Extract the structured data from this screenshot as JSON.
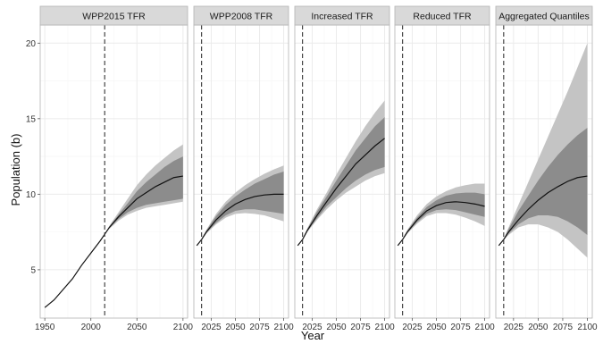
{
  "chart_data": {
    "type": "area",
    "xlabel": "Year",
    "ylabel": "Population (b)",
    "ylim": [
      1.8,
      21.2
    ],
    "y_ticks": [
      5,
      10,
      15,
      20
    ],
    "grid": "on",
    "vline_year": 2015,
    "colors": {
      "panel_bg": "#ffffff",
      "strip_bg": "#d9d9d9",
      "panel_border": "#b3b3b3",
      "grid_major": "#ebebeb",
      "grid_minor": "#f5f5f5",
      "outer_band": "#c4c4c4",
      "inner_band": "#8c8c8c",
      "median_line": "#111111",
      "vline": "#333333"
    },
    "panels": [
      {
        "label": "WPP2015 TFR",
        "xlim": [
          1945,
          2105
        ],
        "x_ticks": [
          1950,
          2000,
          2050,
          2100
        ],
        "x_tick_labels": [
          "1950",
          "2000",
          "2050",
          "2100"
        ],
        "median": [
          [
            1950,
            2.5
          ],
          [
            1960,
            3.0
          ],
          [
            1970,
            3.7
          ],
          [
            1980,
            4.4
          ],
          [
            1990,
            5.3
          ],
          [
            2000,
            6.1
          ],
          [
            2010,
            6.9
          ],
          [
            2015,
            7.35
          ],
          [
            2020,
            7.8
          ],
          [
            2030,
            8.5
          ],
          [
            2040,
            9.1
          ],
          [
            2050,
            9.7
          ],
          [
            2060,
            10.1
          ],
          [
            2070,
            10.5
          ],
          [
            2080,
            10.8
          ],
          [
            2090,
            11.1
          ],
          [
            2100,
            11.2
          ]
        ],
        "band_80": [
          [
            2015,
            7.35,
            7.35
          ],
          [
            2020,
            7.75,
            7.85
          ],
          [
            2030,
            8.35,
            8.65
          ],
          [
            2040,
            8.8,
            9.4
          ],
          [
            2050,
            9.1,
            10.2
          ],
          [
            2060,
            9.3,
            10.8
          ],
          [
            2070,
            9.4,
            11.3
          ],
          [
            2080,
            9.5,
            11.8
          ],
          [
            2090,
            9.6,
            12.2
          ],
          [
            2100,
            9.7,
            12.5
          ]
        ],
        "band_95": [
          [
            2015,
            7.35,
            7.35
          ],
          [
            2020,
            7.7,
            7.9
          ],
          [
            2030,
            8.25,
            8.8
          ],
          [
            2040,
            8.65,
            9.7
          ],
          [
            2050,
            8.9,
            10.6
          ],
          [
            2060,
            9.1,
            11.3
          ],
          [
            2070,
            9.2,
            11.9
          ],
          [
            2080,
            9.3,
            12.4
          ],
          [
            2090,
            9.4,
            12.9
          ],
          [
            2100,
            9.5,
            13.3
          ]
        ]
      },
      {
        "label": "WPP2008 TFR",
        "xlim": [
          2007,
          2105
        ],
        "x_ticks": [
          2025,
          2050,
          2075,
          2100
        ],
        "x_tick_labels": [
          "2025",
          "2050",
          "2075",
          "2100"
        ],
        "median": [
          [
            2010,
            6.6
          ],
          [
            2015,
            7.0
          ],
          [
            2020,
            7.5
          ],
          [
            2030,
            8.3
          ],
          [
            2040,
            8.9
          ],
          [
            2050,
            9.35
          ],
          [
            2060,
            9.65
          ],
          [
            2070,
            9.85
          ],
          [
            2080,
            9.95
          ],
          [
            2090,
            10.0
          ],
          [
            2100,
            10.0
          ]
        ],
        "band_80": [
          [
            2010,
            6.6,
            6.6
          ],
          [
            2015,
            6.98,
            7.02
          ],
          [
            2020,
            7.45,
            7.6
          ],
          [
            2030,
            8.1,
            8.55
          ],
          [
            2040,
            8.6,
            9.3
          ],
          [
            2050,
            8.9,
            9.85
          ],
          [
            2060,
            9.0,
            10.3
          ],
          [
            2070,
            9.0,
            10.7
          ],
          [
            2080,
            8.9,
            11.0
          ],
          [
            2090,
            8.8,
            11.3
          ],
          [
            2100,
            8.7,
            11.5
          ]
        ],
        "band_95": [
          [
            2010,
            6.6,
            6.6
          ],
          [
            2015,
            6.95,
            7.05
          ],
          [
            2020,
            7.4,
            7.65
          ],
          [
            2030,
            8.0,
            8.7
          ],
          [
            2040,
            8.45,
            9.5
          ],
          [
            2050,
            8.7,
            10.1
          ],
          [
            2060,
            8.75,
            10.6
          ],
          [
            2070,
            8.7,
            11.0
          ],
          [
            2080,
            8.6,
            11.35
          ],
          [
            2090,
            8.4,
            11.65
          ],
          [
            2100,
            8.2,
            11.9
          ]
        ]
      },
      {
        "label": "Increased TFR",
        "xlim": [
          2007,
          2105
        ],
        "x_ticks": [
          2025,
          2050,
          2075,
          2100
        ],
        "x_tick_labels": [
          "2025",
          "2050",
          "2075",
          "2100"
        ],
        "median": [
          [
            2010,
            6.6
          ],
          [
            2015,
            7.0
          ],
          [
            2020,
            7.6
          ],
          [
            2030,
            8.6
          ],
          [
            2040,
            9.5
          ],
          [
            2050,
            10.4
          ],
          [
            2060,
            11.2
          ],
          [
            2070,
            12.0
          ],
          [
            2080,
            12.6
          ],
          [
            2090,
            13.2
          ],
          [
            2100,
            13.7
          ]
        ],
        "band_80": [
          [
            2010,
            6.6,
            6.6
          ],
          [
            2015,
            6.98,
            7.02
          ],
          [
            2020,
            7.55,
            7.7
          ],
          [
            2030,
            8.4,
            8.85
          ],
          [
            2040,
            9.2,
            9.85
          ],
          [
            2050,
            9.8,
            10.9
          ],
          [
            2060,
            10.4,
            11.9
          ],
          [
            2070,
            10.9,
            12.9
          ],
          [
            2080,
            11.3,
            13.7
          ],
          [
            2090,
            11.6,
            14.5
          ],
          [
            2100,
            11.8,
            15.1
          ]
        ],
        "band_95": [
          [
            2010,
            6.6,
            6.6
          ],
          [
            2015,
            6.95,
            7.05
          ],
          [
            2020,
            7.5,
            7.75
          ],
          [
            2030,
            8.3,
            9.0
          ],
          [
            2040,
            9.0,
            10.1
          ],
          [
            2050,
            9.6,
            11.3
          ],
          [
            2060,
            10.1,
            12.4
          ],
          [
            2070,
            10.5,
            13.5
          ],
          [
            2080,
            10.9,
            14.5
          ],
          [
            2090,
            11.2,
            15.4
          ],
          [
            2100,
            11.4,
            16.2
          ]
        ]
      },
      {
        "label": "Reduced TFR",
        "xlim": [
          2007,
          2105
        ],
        "x_ticks": [
          2025,
          2050,
          2075,
          2100
        ],
        "x_tick_labels": [
          "2025",
          "2050",
          "2075",
          "2100"
        ],
        "median": [
          [
            2010,
            6.6
          ],
          [
            2015,
            7.0
          ],
          [
            2020,
            7.5
          ],
          [
            2030,
            8.3
          ],
          [
            2040,
            8.9
          ],
          [
            2050,
            9.25
          ],
          [
            2060,
            9.45
          ],
          [
            2070,
            9.5
          ],
          [
            2080,
            9.45
          ],
          [
            2090,
            9.35
          ],
          [
            2100,
            9.2
          ]
        ],
        "band_80": [
          [
            2010,
            6.6,
            6.6
          ],
          [
            2015,
            6.98,
            7.02
          ],
          [
            2020,
            7.45,
            7.6
          ],
          [
            2030,
            8.15,
            8.45
          ],
          [
            2040,
            8.7,
            9.15
          ],
          [
            2050,
            8.95,
            9.6
          ],
          [
            2060,
            9.0,
            9.9
          ],
          [
            2070,
            8.95,
            10.05
          ],
          [
            2080,
            8.8,
            10.1
          ],
          [
            2090,
            8.65,
            10.1
          ],
          [
            2100,
            8.5,
            10.0
          ]
        ],
        "band_95": [
          [
            2010,
            6.6,
            6.6
          ],
          [
            2015,
            6.95,
            7.05
          ],
          [
            2020,
            7.4,
            7.65
          ],
          [
            2030,
            8.05,
            8.6
          ],
          [
            2040,
            8.55,
            9.35
          ],
          [
            2050,
            8.75,
            9.85
          ],
          [
            2060,
            8.75,
            10.2
          ],
          [
            2070,
            8.65,
            10.45
          ],
          [
            2080,
            8.45,
            10.6
          ],
          [
            2090,
            8.2,
            10.7
          ],
          [
            2100,
            7.9,
            10.7
          ]
        ]
      },
      {
        "label": "Aggregated Quantiles",
        "xlim": [
          2007,
          2105
        ],
        "x_ticks": [
          2025,
          2050,
          2075,
          2100
        ],
        "x_tick_labels": [
          "2025",
          "2050",
          "2075",
          "2100"
        ],
        "median": [
          [
            2010,
            6.6
          ],
          [
            2015,
            7.0
          ],
          [
            2020,
            7.5
          ],
          [
            2030,
            8.3
          ],
          [
            2040,
            9.0
          ],
          [
            2050,
            9.6
          ],
          [
            2060,
            10.1
          ],
          [
            2070,
            10.5
          ],
          [
            2080,
            10.85
          ],
          [
            2090,
            11.1
          ],
          [
            2100,
            11.2
          ]
        ],
        "band_80": [
          [
            2010,
            6.6,
            6.6
          ],
          [
            2015,
            6.98,
            7.02
          ],
          [
            2020,
            7.4,
            7.7
          ],
          [
            2030,
            8.0,
            8.9
          ],
          [
            2040,
            8.4,
            9.9
          ],
          [
            2050,
            8.6,
            10.9
          ],
          [
            2060,
            8.6,
            11.8
          ],
          [
            2070,
            8.5,
            12.6
          ],
          [
            2080,
            8.2,
            13.3
          ],
          [
            2090,
            7.8,
            13.9
          ],
          [
            2100,
            7.3,
            14.4
          ]
        ],
        "band_95": [
          [
            2010,
            6.6,
            6.6
          ],
          [
            2015,
            6.95,
            7.05
          ],
          [
            2020,
            7.3,
            7.8
          ],
          [
            2030,
            7.8,
            9.3
          ],
          [
            2040,
            8.0,
            10.8
          ],
          [
            2050,
            8.0,
            12.3
          ],
          [
            2060,
            7.8,
            13.8
          ],
          [
            2070,
            7.5,
            15.3
          ],
          [
            2080,
            7.0,
            16.8
          ],
          [
            2090,
            6.4,
            18.4
          ],
          [
            2100,
            5.8,
            20.0
          ]
        ]
      }
    ]
  }
}
